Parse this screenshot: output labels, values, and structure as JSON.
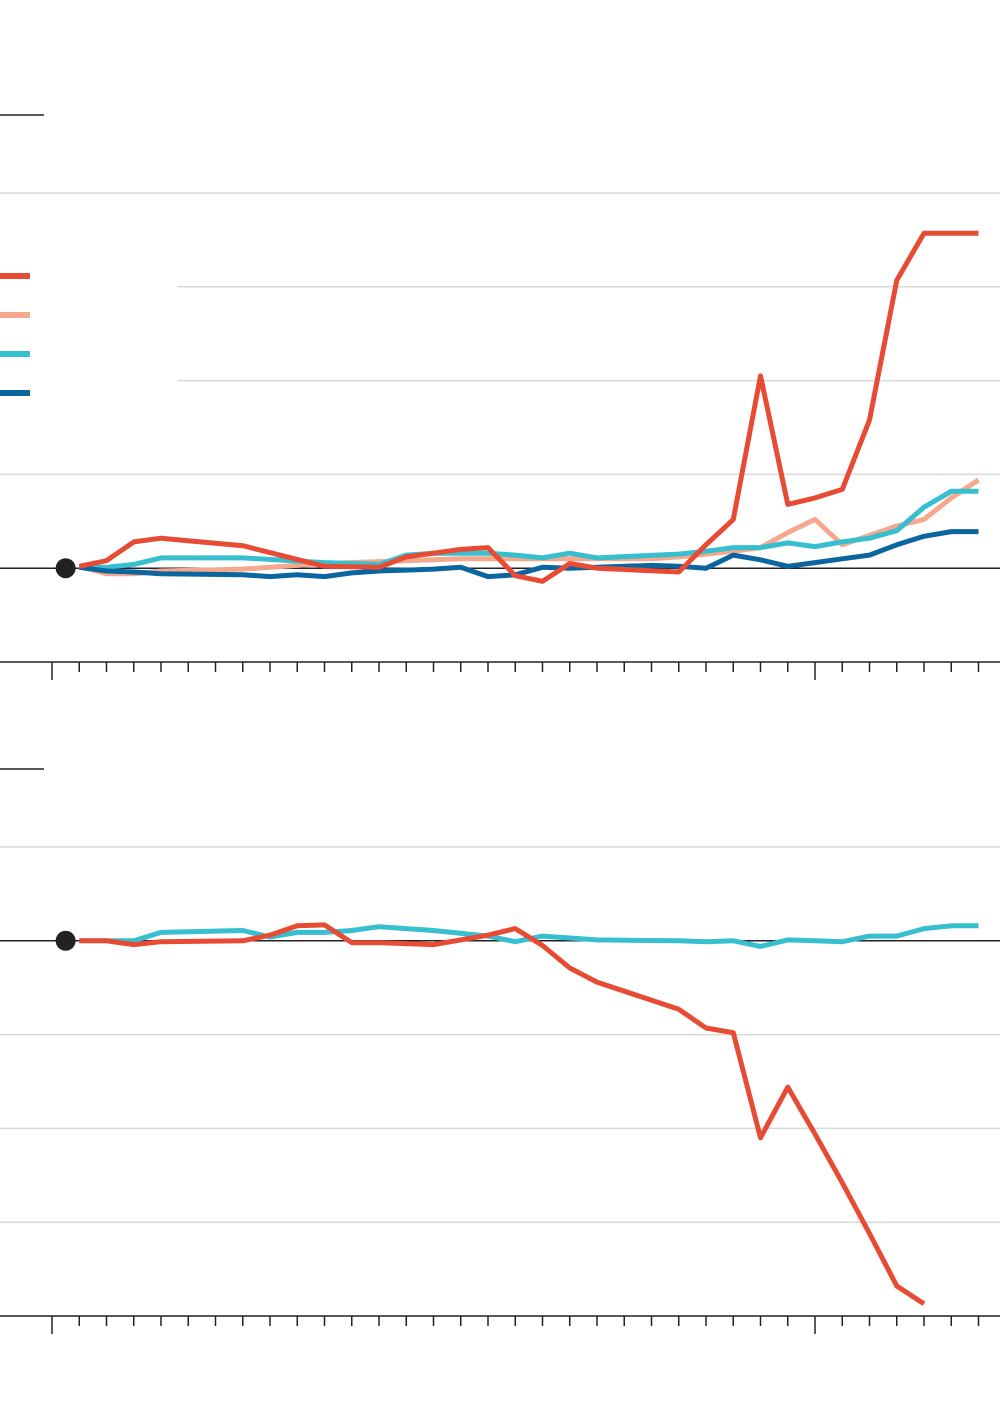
{
  "colors": {
    "red": "#e84b34",
    "salmon": "#f4a98f",
    "cyan": "#38bfcf",
    "blue": "#0b66a0",
    "grid": "#d9d9d9",
    "axis": "#222222",
    "marker": "#222222"
  },
  "legend": {
    "placement": "top-left",
    "entries": [
      {
        "color": "#e84b34",
        "label": ""
      },
      {
        "color": "#f4a98f",
        "label": ""
      },
      {
        "color": "#38bfcf",
        "label": ""
      },
      {
        "color": "#0b66a0",
        "label": ""
      }
    ]
  },
  "chart_data": [
    {
      "type": "line",
      "title": "",
      "xlabel": "",
      "ylabel": "",
      "xlim": [
        0,
        34
      ],
      "ylim": [
        -1,
        4
      ],
      "grid": true,
      "yticks": [
        -1,
        0,
        1,
        2,
        3,
        4
      ],
      "origin_marker": {
        "x": 0.5,
        "y": 0
      },
      "series": [
        {
          "name": "",
          "color": "#f4a98f",
          "x": [
            1,
            2,
            3,
            4,
            7,
            10,
            12,
            13,
            14,
            15,
            16,
            20,
            21,
            22,
            23,
            24,
            25,
            26,
            27,
            28,
            29,
            30,
            31,
            32,
            33,
            34
          ],
          "y": [
            0.02,
            -0.06,
            -0.06,
            -0.03,
            -0.01,
            0.05,
            0.07,
            0.08,
            0.09,
            0.1,
            0.1,
            0.1,
            0.1,
            0.1,
            0.12,
            0.15,
            0.18,
            0.22,
            0.38,
            0.52,
            0.25,
            0.35,
            0.45,
            0.52,
            0.75,
            0.94
          ]
        },
        {
          "name": "",
          "color": "#38bfcf",
          "x": [
            1,
            2,
            3,
            4,
            7,
            10,
            12,
            13,
            14,
            15,
            16,
            17,
            18,
            19,
            20,
            23,
            24,
            25,
            26,
            27,
            28,
            29,
            30,
            31,
            32,
            33,
            34
          ],
          "y": [
            0.01,
            0.01,
            0.04,
            0.11,
            0.11,
            0.06,
            0.04,
            0.14,
            0.16,
            0.16,
            0.16,
            0.14,
            0.11,
            0.16,
            0.11,
            0.15,
            0.18,
            0.22,
            0.22,
            0.27,
            0.23,
            0.28,
            0.32,
            0.4,
            0.65,
            0.82,
            0.82
          ]
        },
        {
          "name": "",
          "color": "#0b66a0",
          "x": [
            1,
            2,
            3,
            4,
            7,
            8,
            9,
            10,
            11,
            12,
            13,
            14,
            15,
            16,
            17,
            18,
            19,
            20,
            21,
            22,
            23,
            24,
            25,
            26,
            27,
            28,
            29,
            30,
            31,
            32,
            33,
            34
          ],
          "y": [
            0.01,
            -0.03,
            -0.04,
            -0.06,
            -0.07,
            -0.09,
            -0.07,
            -0.09,
            -0.05,
            -0.03,
            -0.02,
            -0.01,
            0.01,
            -0.09,
            -0.07,
            0.01,
            0.0,
            0.01,
            0.02,
            0.03,
            0.02,
            0.0,
            0.14,
            0.09,
            0.02,
            0.06,
            0.1,
            0.14,
            0.25,
            0.34,
            0.39,
            0.39
          ]
        },
        {
          "name": "",
          "color": "#e84b34",
          "x": [
            1,
            2,
            3,
            4,
            7,
            10,
            12,
            13,
            14,
            15,
            16,
            17,
            18,
            19,
            20,
            23,
            24,
            25,
            26,
            27,
            28,
            29,
            30,
            31,
            32,
            33,
            34
          ],
          "y": [
            0.02,
            0.08,
            0.28,
            0.32,
            0.24,
            0.02,
            0.01,
            0.12,
            0.16,
            0.2,
            0.22,
            -0.08,
            -0.14,
            0.05,
            0.0,
            -0.04,
            0.25,
            0.52,
            2.05,
            0.68,
            0.75,
            0.84,
            1.58,
            3.07,
            3.57,
            3.57,
            3.57
          ]
        }
      ]
    },
    {
      "type": "line",
      "title": "",
      "xlabel": "",
      "ylabel": "",
      "xlim": [
        0,
        34
      ],
      "ylim": [
        -4,
        1
      ],
      "grid": true,
      "yticks": [
        -4,
        -3,
        -2,
        -1,
        0,
        1
      ],
      "origin_marker": {
        "x": 0.5,
        "y": 0
      },
      "series": [
        {
          "name": "",
          "color": "#38bfcf",
          "x": [
            1,
            2,
            3,
            4,
            7,
            8,
            9,
            10,
            11,
            12,
            13,
            14,
            16,
            17,
            18,
            19,
            20,
            23,
            24,
            25,
            26,
            27,
            28,
            29,
            30,
            31,
            32,
            33,
            34
          ],
          "y": [
            0.0,
            0.0,
            0.0,
            0.09,
            0.11,
            0.04,
            0.09,
            0.09,
            0.11,
            0.15,
            0.13,
            0.11,
            0.05,
            -0.01,
            0.05,
            0.03,
            0.01,
            0.0,
            -0.01,
            0.0,
            -0.06,
            0.01,
            0.0,
            -0.01,
            0.05,
            0.05,
            0.13,
            0.16,
            0.16
          ]
        },
        {
          "name": "",
          "color": "#e84b34",
          "x": [
            1,
            2,
            3,
            4,
            7,
            8,
            9,
            10,
            11,
            12,
            13,
            14,
            16,
            17,
            18,
            19,
            20,
            23,
            24,
            25,
            26,
            27,
            28,
            29,
            30,
            31,
            32
          ],
          "y": [
            0.0,
            0.0,
            -0.04,
            -0.01,
            0.0,
            0.06,
            0.16,
            0.17,
            -0.02,
            -0.02,
            -0.03,
            -0.04,
            0.06,
            0.13,
            -0.05,
            -0.29,
            -0.44,
            -0.73,
            -0.93,
            -0.98,
            -2.1,
            -1.56,
            -2.06,
            -2.58,
            -3.12,
            -3.68,
            -3.87
          ]
        }
      ]
    }
  ]
}
